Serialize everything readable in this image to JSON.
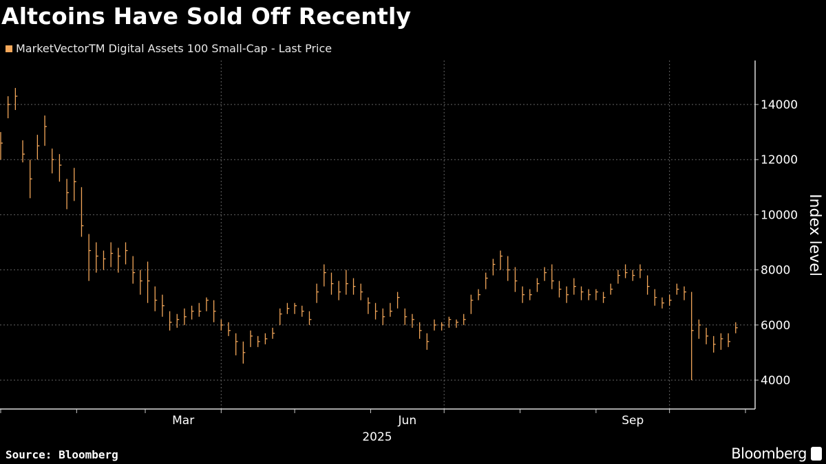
{
  "title": "Altcoins Have Sold Off Recently",
  "source": "Source: Bloomberg",
  "brand": "Bloomberg",
  "chart_data": {
    "type": "ohlc",
    "title": "Altcoins Have Sold Off Recently",
    "series_name": "MarketVectorTM Digital Assets 100 Small-Cap - Last Price",
    "color": "#f5a85a",
    "ylabel": "Index level",
    "xlabel": "2025",
    "ylim": [
      3000,
      15500
    ],
    "yticks": [
      "4000",
      "6000",
      "8000",
      "10000",
      "12000",
      "14000"
    ],
    "xticks": [
      "Mar",
      "Jun",
      "Sep"
    ],
    "xlim": [
      "2025-01-01",
      "2025-11-01"
    ],
    "grid": true,
    "bar_fields": [
      "date",
      "high",
      "low",
      "close"
    ],
    "bars": [
      [
        "2025-01-01",
        13000,
        12000,
        12600
      ],
      [
        "2025-01-04",
        14300,
        13500,
        14000
      ],
      [
        "2025-01-07",
        14600,
        13800,
        14300
      ],
      [
        "2025-01-10",
        12700,
        11900,
        12200
      ],
      [
        "2025-01-13",
        12000,
        10600,
        11300
      ],
      [
        "2025-01-16",
        12900,
        12000,
        12500
      ],
      [
        "2025-01-19",
        13600,
        12500,
        13200
      ],
      [
        "2025-01-22",
        12400,
        11500,
        12000
      ],
      [
        "2025-01-25",
        12200,
        11200,
        11800
      ],
      [
        "2025-01-28",
        11300,
        10200,
        10800
      ],
      [
        "2025-01-31",
        11700,
        10500,
        11200
      ],
      [
        "2025-02-03",
        11000,
        9200,
        9600
      ],
      [
        "2025-02-06",
        9300,
        7600,
        8700
      ],
      [
        "2025-02-09",
        9000,
        7900,
        8500
      ],
      [
        "2025-02-12",
        8700,
        8000,
        8400
      ],
      [
        "2025-02-15",
        9000,
        8100,
        8600
      ],
      [
        "2025-02-18",
        8800,
        7900,
        8500
      ],
      [
        "2025-02-21",
        9000,
        8200,
        8700
      ],
      [
        "2025-02-24",
        8500,
        7500,
        7900
      ],
      [
        "2025-02-27",
        8000,
        7100,
        7600
      ],
      [
        "2025-03-02",
        8300,
        6800,
        7600
      ],
      [
        "2025-03-05",
        7400,
        6500,
        6900
      ],
      [
        "2025-03-08",
        7100,
        6300,
        6700
      ],
      [
        "2025-03-11",
        6500,
        5800,
        6100
      ],
      [
        "2025-03-14",
        6400,
        5900,
        6200
      ],
      [
        "2025-03-17",
        6600,
        6000,
        6300
      ],
      [
        "2025-03-20",
        6700,
        6200,
        6500
      ],
      [
        "2025-03-23",
        6800,
        6300,
        6500
      ],
      [
        "2025-03-26",
        7000,
        6500,
        6900
      ],
      [
        "2025-03-29",
        6900,
        6100,
        6500
      ],
      [
        "2025-04-01",
        6200,
        5800,
        6000
      ],
      [
        "2025-04-04",
        6100,
        5600,
        5800
      ],
      [
        "2025-04-07",
        5700,
        4900,
        5400
      ],
      [
        "2025-04-10",
        5400,
        4600,
        5000
      ],
      [
        "2025-04-13",
        5800,
        5200,
        5600
      ],
      [
        "2025-04-16",
        5600,
        5200,
        5400
      ],
      [
        "2025-04-19",
        5700,
        5300,
        5500
      ],
      [
        "2025-04-22",
        5900,
        5500,
        5700
      ],
      [
        "2025-04-25",
        6600,
        6000,
        6400
      ],
      [
        "2025-04-28",
        6800,
        6400,
        6600
      ],
      [
        "2025-05-01",
        6800,
        6400,
        6700
      ],
      [
        "2025-05-04",
        6700,
        6300,
        6500
      ],
      [
        "2025-05-07",
        6500,
        6000,
        6200
      ],
      [
        "2025-05-10",
        7500,
        6800,
        7200
      ],
      [
        "2025-05-13",
        8200,
        7400,
        7900
      ],
      [
        "2025-05-16",
        7900,
        7100,
        7500
      ],
      [
        "2025-05-19",
        7600,
        6900,
        7200
      ],
      [
        "2025-05-22",
        8000,
        7100,
        7500
      ],
      [
        "2025-05-25",
        7700,
        7100,
        7400
      ],
      [
        "2025-05-28",
        7500,
        6900,
        7200
      ],
      [
        "2025-05-31",
        7000,
        6400,
        6800
      ],
      [
        "2025-06-03",
        6800,
        6200,
        6500
      ],
      [
        "2025-06-06",
        6600,
        6000,
        6300
      ],
      [
        "2025-06-09",
        6800,
        6300,
        6500
      ],
      [
        "2025-06-12",
        7200,
        6600,
        7000
      ],
      [
        "2025-06-15",
        6600,
        6000,
        6300
      ],
      [
        "2025-06-18",
        6400,
        5900,
        6200
      ],
      [
        "2025-06-21",
        6100,
        5500,
        5800
      ],
      [
        "2025-06-24",
        5700,
        5100,
        5400
      ],
      [
        "2025-06-27",
        6200,
        5800,
        6000
      ],
      [
        "2025-06-30",
        6100,
        5800,
        6000
      ],
      [
        "2025-07-03",
        6300,
        5900,
        6200
      ],
      [
        "2025-07-06",
        6200,
        5900,
        6100
      ],
      [
        "2025-07-09",
        6400,
        6000,
        6200
      ],
      [
        "2025-07-12",
        7100,
        6400,
        6900
      ],
      [
        "2025-07-15",
        7300,
        6900,
        7100
      ],
      [
        "2025-07-18",
        7900,
        7300,
        7700
      ],
      [
        "2025-07-21",
        8400,
        7800,
        8200
      ],
      [
        "2025-07-24",
        8700,
        8000,
        8500
      ],
      [
        "2025-07-27",
        8500,
        7600,
        8000
      ],
      [
        "2025-07-30",
        8100,
        7200,
        7600
      ],
      [
        "2025-08-02",
        7400,
        6800,
        7100
      ],
      [
        "2025-08-05",
        7300,
        6900,
        7100
      ],
      [
        "2025-08-08",
        7700,
        7200,
        7500
      ],
      [
        "2025-08-11",
        8100,
        7600,
        7900
      ],
      [
        "2025-08-14",
        8200,
        7300,
        7600
      ],
      [
        "2025-08-17",
        7600,
        7000,
        7300
      ],
      [
        "2025-08-20",
        7400,
        6800,
        7100
      ],
      [
        "2025-08-23",
        7700,
        7100,
        7400
      ],
      [
        "2025-08-26",
        7400,
        6900,
        7200
      ],
      [
        "2025-08-29",
        7300,
        6900,
        7100
      ],
      [
        "2025-09-01",
        7300,
        6900,
        7200
      ],
      [
        "2025-09-04",
        7200,
        6800,
        7000
      ],
      [
        "2025-09-07",
        7500,
        7100,
        7300
      ],
      [
        "2025-09-10",
        8000,
        7500,
        7800
      ],
      [
        "2025-09-13",
        8200,
        7700,
        7900
      ],
      [
        "2025-09-16",
        8000,
        7600,
        7800
      ],
      [
        "2025-09-19",
        8200,
        7700,
        8000
      ],
      [
        "2025-09-22",
        7800,
        7100,
        7400
      ],
      [
        "2025-09-25",
        7300,
        6700,
        7000
      ],
      [
        "2025-09-28",
        7000,
        6600,
        6800
      ],
      [
        "2025-10-01",
        7100,
        6700,
        6900
      ],
      [
        "2025-10-04",
        7500,
        7100,
        7300
      ],
      [
        "2025-10-07",
        7400,
        6900,
        7200
      ],
      [
        "2025-10-10",
        7200,
        4000,
        5800
      ],
      [
        "2025-10-13",
        6200,
        5500,
        6000
      ],
      [
        "2025-10-16",
        5900,
        5300,
        5600
      ],
      [
        "2025-10-19",
        5600,
        5000,
        5300
      ],
      [
        "2025-10-22",
        5700,
        5100,
        5500
      ],
      [
        "2025-10-25",
        5700,
        5200,
        5400
      ],
      [
        "2025-10-28",
        6100,
        5700,
        5900
      ]
    ]
  }
}
